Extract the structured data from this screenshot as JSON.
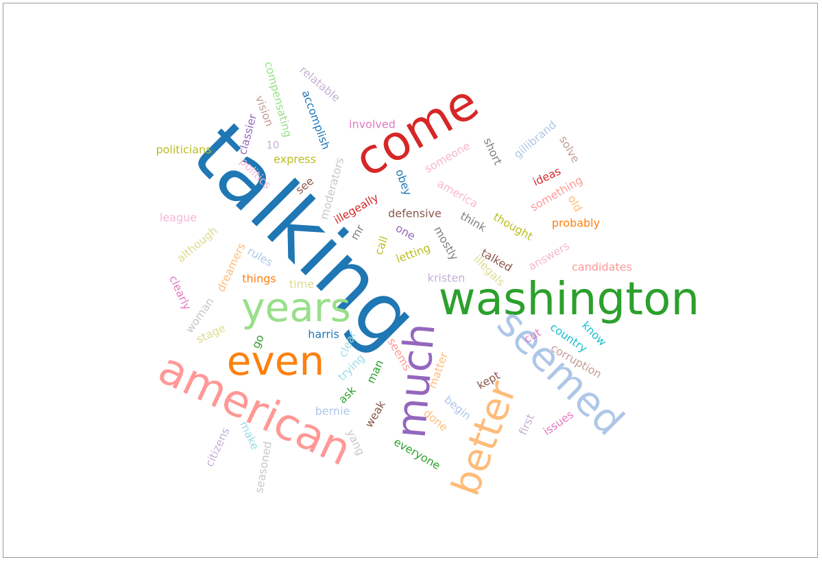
{
  "chart_data": {
    "type": "wordcloud",
    "words": [
      {
        "text": "talking",
        "color": "#1f77b4"
      },
      {
        "text": "washington",
        "color": "#2ca02c"
      },
      {
        "text": "come",
        "color": "#d62728"
      },
      {
        "text": "american",
        "color": "#ff9896"
      },
      {
        "text": "seemed",
        "color": "#aec7e8"
      },
      {
        "text": "much",
        "color": "#9467bd"
      },
      {
        "text": "better",
        "color": "#ffbb78"
      },
      {
        "text": "even",
        "color": "#ff7f0e"
      },
      {
        "text": "years",
        "color": "#98df8a"
      },
      {
        "text": "compensating",
        "color": "#98df8a"
      },
      {
        "text": "relatable",
        "color": "#c5b0d5"
      },
      {
        "text": "accomplish",
        "color": "#1f77b4"
      },
      {
        "text": "vision",
        "color": "#c49c94"
      },
      {
        "text": "classier",
        "color": "#9467bd"
      },
      {
        "text": "10",
        "color": "#c5b0d5"
      },
      {
        "text": "involved",
        "color": "#e377c2"
      },
      {
        "text": "politicians",
        "color": "#bcbd22"
      },
      {
        "text": "express",
        "color": "#bcbd22"
      },
      {
        "text": "politics",
        "color": "#f7b6d2"
      },
      {
        "text": "see",
        "color": "#8c564b"
      },
      {
        "text": "moderators",
        "color": "#c7c7c7"
      },
      {
        "text": "obey",
        "color": "#1f77b4"
      },
      {
        "text": "someone",
        "color": "#f7b6d2"
      },
      {
        "text": "short",
        "color": "#7f7f7f"
      },
      {
        "text": "gillibrand",
        "color": "#aec7e8"
      },
      {
        "text": "solve",
        "color": "#c49c94"
      },
      {
        "text": "ideas",
        "color": "#d62728"
      },
      {
        "text": "something",
        "color": "#ff9896"
      },
      {
        "text": "america",
        "color": "#f7b6d2"
      },
      {
        "text": "league",
        "color": "#f7b6d2"
      },
      {
        "text": "illegeally",
        "color": "#d62728"
      },
      {
        "text": "mr",
        "color": "#7f7f7f"
      },
      {
        "text": "defensive",
        "color": "#8c564b"
      },
      {
        "text": "think",
        "color": "#7f7f7f"
      },
      {
        "text": "thought",
        "color": "#bcbd22"
      },
      {
        "text": "old",
        "color": "#ffbb78"
      },
      {
        "text": "probably",
        "color": "#ff7f0e"
      },
      {
        "text": "one",
        "color": "#9467bd"
      },
      {
        "text": "mostly",
        "color": "#7f7f7f"
      },
      {
        "text": "although",
        "color": "#dbdb8d"
      },
      {
        "text": "call",
        "color": "#bcbd22"
      },
      {
        "text": "letting",
        "color": "#bcbd22"
      },
      {
        "text": "talked",
        "color": "#8c564b"
      },
      {
        "text": "answers",
        "color": "#f7b6d2"
      },
      {
        "text": "dreamers",
        "color": "#ffbb78"
      },
      {
        "text": "rules",
        "color": "#aec7e8"
      },
      {
        "text": "things",
        "color": "#ff7f0e"
      },
      {
        "text": "illegals",
        "color": "#dbdb8d"
      },
      {
        "text": "kristen",
        "color": "#c5b0d5"
      },
      {
        "text": "candidates",
        "color": "#ff9896"
      },
      {
        "text": "clearly",
        "color": "#e377c2"
      },
      {
        "text": "time",
        "color": "#dbdb8d"
      },
      {
        "text": "woman",
        "color": "#c7c7c7"
      },
      {
        "text": "stage",
        "color": "#dbdb8d"
      },
      {
        "text": "harris",
        "color": "#1f77b4"
      },
      {
        "text": "know",
        "color": "#17becf"
      },
      {
        "text": "country",
        "color": "#17becf"
      },
      {
        "text": "cut",
        "color": "#e377c2"
      },
      {
        "text": "corruption",
        "color": "#c49c94"
      },
      {
        "text": "go",
        "color": "#2ca02c"
      },
      {
        "text": "clear",
        "color": "#9edae5"
      },
      {
        "text": "trying",
        "color": "#9edae5"
      },
      {
        "text": "man",
        "color": "#2ca02c"
      },
      {
        "text": "seems",
        "color": "#ff9896"
      },
      {
        "text": "matter",
        "color": "#ffbb78"
      },
      {
        "text": "kept",
        "color": "#8c564b"
      },
      {
        "text": "ask",
        "color": "#2ca02c"
      },
      {
        "text": "bernie",
        "color": "#aec7e8"
      },
      {
        "text": "weak",
        "color": "#8c564b"
      },
      {
        "text": "begin",
        "color": "#aec7e8"
      },
      {
        "text": "done",
        "color": "#ffbb78"
      },
      {
        "text": "first",
        "color": "#c5b0d5"
      },
      {
        "text": "issues",
        "color": "#e377c2"
      },
      {
        "text": "make",
        "color": "#9edae5"
      },
      {
        "text": "yang",
        "color": "#c7c7c7"
      },
      {
        "text": "citizens",
        "color": "#c5b0d5"
      },
      {
        "text": "seasoned",
        "color": "#c7c7c7"
      },
      {
        "text": "everyone",
        "color": "#2ca02c"
      }
    ]
  }
}
